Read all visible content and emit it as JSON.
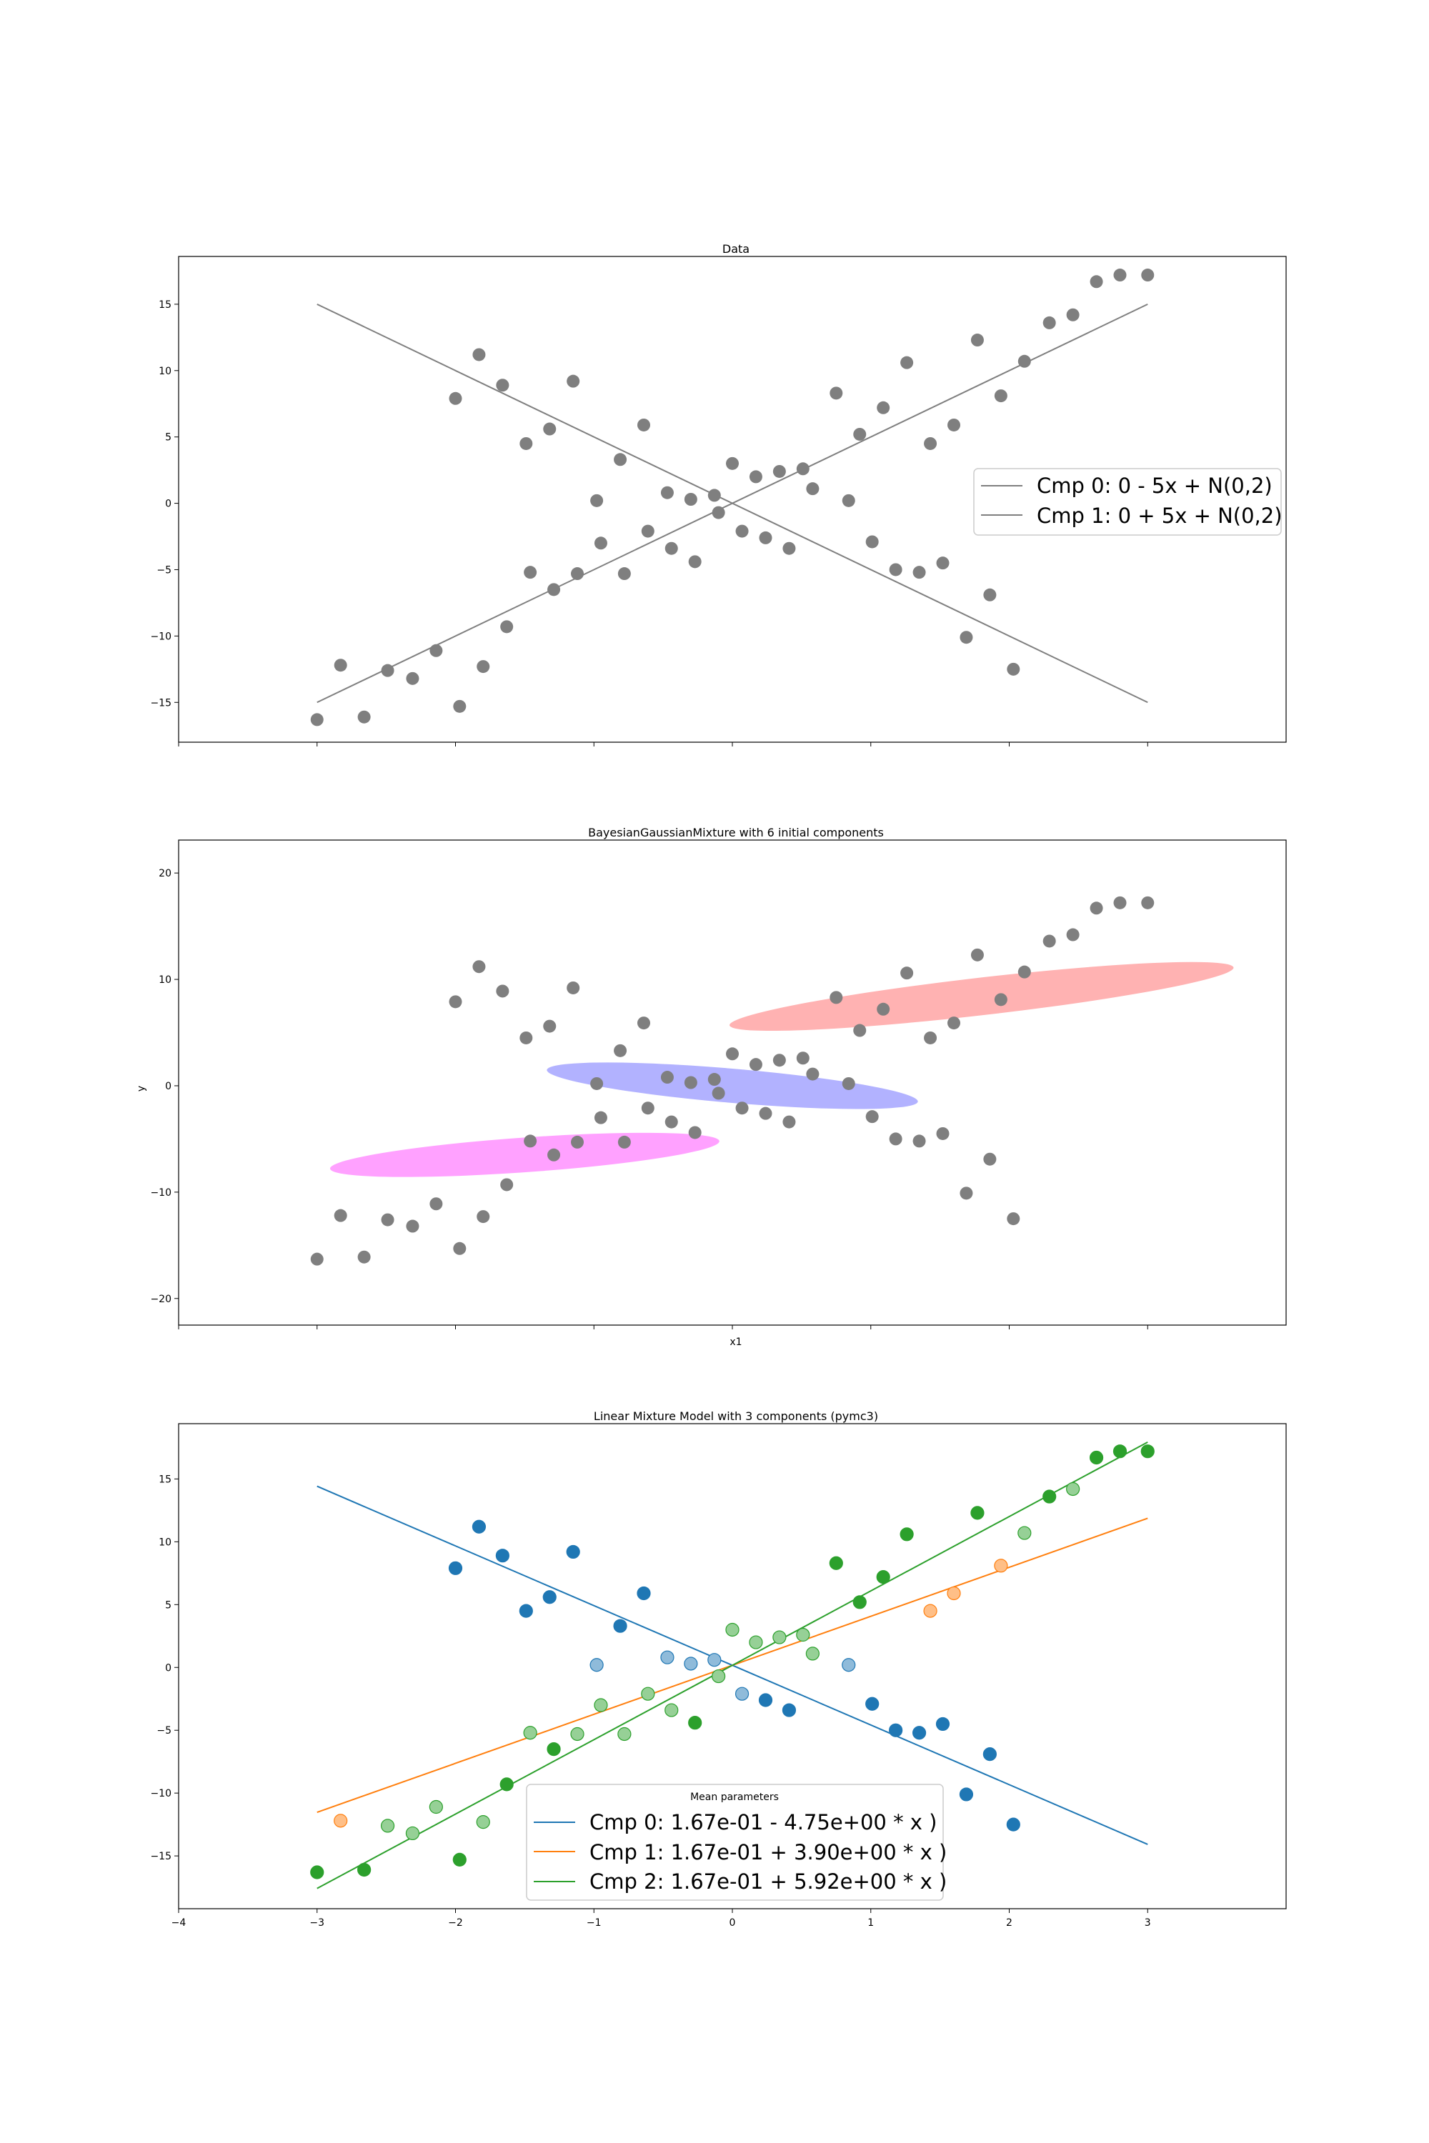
{
  "colors": {
    "gray": "#7f7f7f",
    "blue": "#1f77b4",
    "orange": "#ff7f0e",
    "green": "#2ca02c",
    "ellipse_red": "#ff6666",
    "ellipse_blue": "#6666ff",
    "ellipse_magenta": "#ff44ff"
  },
  "chart_data": [
    {
      "type": "scatter",
      "title": "Data",
      "xlabel": "",
      "ylabel": "",
      "xlim": [
        -4,
        4
      ],
      "ylim": [
        -18,
        18.6
      ],
      "x_ticks": [],
      "y_ticks": [
        -15,
        -10,
        -5,
        0,
        5,
        10,
        15
      ],
      "y_tick_labels": [
        "−15",
        "−10",
        "−5",
        "0",
        "5",
        "10",
        "15"
      ],
      "points": [
        [
          -3.0,
          -16.3
        ],
        [
          -2.83,
          -12.2
        ],
        [
          -2.66,
          -16.1
        ],
        [
          -2.49,
          -12.6
        ],
        [
          -2.31,
          -13.2
        ],
        [
          -2.14,
          -11.1
        ],
        [
          -1.97,
          -15.3
        ],
        [
          -1.8,
          -12.3
        ],
        [
          -1.63,
          -9.3
        ],
        [
          -1.46,
          -5.2
        ],
        [
          -1.29,
          -6.5
        ],
        [
          -1.12,
          -5.3
        ],
        [
          -0.95,
          -3.0
        ],
        [
          -0.78,
          -5.3
        ],
        [
          -0.61,
          -2.1
        ],
        [
          -0.44,
          -3.4
        ],
        [
          -0.27,
          -4.4
        ],
        [
          -0.1,
          -0.7
        ],
        [
          0.07,
          -2.1
        ],
        [
          0.24,
          -2.6
        ],
        [
          0.41,
          -3.4
        ],
        [
          0.58,
          1.1
        ],
        [
          0.75,
          8.3
        ],
        [
          0.92,
          5.2
        ],
        [
          1.09,
          7.2
        ],
        [
          1.26,
          10.6
        ],
        [
          1.43,
          4.5
        ],
        [
          1.6,
          5.9
        ],
        [
          1.77,
          12.3
        ],
        [
          1.94,
          8.1
        ],
        [
          2.11,
          10.7
        ],
        [
          2.29,
          13.6
        ],
        [
          2.46,
          14.2
        ],
        [
          2.63,
          16.7
        ],
        [
          2.8,
          17.2
        ],
        [
          3.0,
          17.2
        ],
        [
          -2.0,
          7.9
        ],
        [
          -1.83,
          11.2
        ],
        [
          -1.66,
          8.9
        ],
        [
          -1.49,
          4.5
        ],
        [
          -1.32,
          5.6
        ],
        [
          -1.15,
          9.2
        ],
        [
          -0.98,
          0.2
        ],
        [
          -0.81,
          3.3
        ],
        [
          -0.64,
          5.9
        ],
        [
          -0.47,
          0.8
        ],
        [
          -0.3,
          0.3
        ],
        [
          -0.13,
          0.6
        ],
        [
          0.0,
          3.0
        ],
        [
          0.17,
          2.0
        ],
        [
          0.34,
          2.4
        ],
        [
          0.51,
          2.6
        ],
        [
          0.84,
          0.2
        ],
        [
          1.01,
          -2.9
        ],
        [
          1.18,
          -5.0
        ],
        [
          1.35,
          -5.2
        ],
        [
          1.52,
          -4.5
        ],
        [
          1.69,
          -10.1
        ],
        [
          1.86,
          -6.9
        ],
        [
          2.03,
          -12.5
        ]
      ],
      "lines": [
        {
          "name": "Cmp 0: 0 - 5x + N(0,2)",
          "x": [
            -3,
            3
          ],
          "y": [
            15,
            -15
          ]
        },
        {
          "name": "Cmp 1: 0 + 5x + N(0,2)",
          "x": [
            -3,
            3
          ],
          "y": [
            -15,
            15
          ]
        }
      ],
      "legend": [
        "Cmp 0: 0 - 5x + N(0,2)",
        "Cmp 1: 0 + 5x + N(0,2)"
      ]
    },
    {
      "type": "scatter",
      "title": "BayesianGaussianMixture with 6 initial components",
      "xlabel": "x1",
      "ylabel": "y",
      "xlim": [
        -4,
        4
      ],
      "ylim": [
        -22.5,
        23.1
      ],
      "x_ticks": [],
      "y_ticks": [
        -20,
        -10,
        0,
        10,
        20
      ],
      "y_tick_labels": [
        "−20",
        "−10",
        "0",
        "10",
        "20"
      ],
      "ellipses": [
        {
          "name": "component-red",
          "cx": 1.8,
          "cy": 8.4,
          "rx": 3.6,
          "ry": 0.9,
          "angle_deg": 63.0,
          "fill": "#ff6666",
          "alpha": 0.5
        },
        {
          "name": "component-blue",
          "cx": 0.0,
          "cy": 0.0,
          "rx": 2.4,
          "ry": 0.9,
          "angle_deg": -63.5,
          "fill": "#6666ff",
          "alpha": 0.5
        },
        {
          "name": "component-magenta",
          "cx": -1.5,
          "cy": -6.5,
          "rx": 2.3,
          "ry": 1.0,
          "angle_deg": 61.5,
          "fill": "#ff44ff",
          "alpha": 0.5
        }
      ]
    },
    {
      "type": "scatter",
      "title": "Linear Mixture Model with 3 components (pymc3)",
      "xlabel": "",
      "ylabel": "",
      "xlim": [
        -4,
        4
      ],
      "ylim": [
        -19.2,
        19.4
      ],
      "x_ticks": [
        -4,
        -3,
        -2,
        -1,
        0,
        1,
        2,
        3
      ],
      "x_tick_labels": [
        "−4",
        "−3",
        "−2",
        "−1",
        "0",
        "1",
        "2",
        "3"
      ],
      "y_ticks": [
        -15,
        -10,
        -5,
        0,
        5,
        10,
        15
      ],
      "y_tick_labels": [
        "−15",
        "−10",
        "−5",
        "0",
        "5",
        "10",
        "15"
      ],
      "assignments": [
        2,
        1,
        2,
        2,
        2,
        2,
        2,
        2,
        2,
        2,
        2,
        2,
        2,
        2,
        2,
        2,
        2,
        2,
        0,
        0,
        0,
        2,
        2,
        2,
        2,
        2,
        1,
        1,
        2,
        1,
        2,
        2,
        2,
        2,
        2,
        2,
        0,
        0,
        0,
        0,
        0,
        0,
        0,
        0,
        0,
        0,
        0,
        0,
        2,
        2,
        2,
        2,
        0,
        0,
        0,
        0,
        0,
        0,
        0,
        0
      ],
      "strong": [
        1,
        0,
        1,
        0,
        0,
        0,
        1,
        0,
        1,
        0,
        1,
        0,
        0,
        0,
        0,
        0,
        1,
        0,
        0,
        1,
        1,
        0,
        1,
        1,
        1,
        1,
        0,
        0,
        1,
        0,
        0,
        1,
        0,
        1,
        1,
        1,
        1,
        1,
        1,
        1,
        1,
        1,
        0,
        1,
        1,
        0,
        0,
        0,
        0,
        0,
        0,
        0,
        0,
        1,
        1,
        1,
        1,
        1,
        1,
        1
      ],
      "lines": [
        {
          "name": "Cmp 0: 1.67e-01 - 4.75e+00 * x )",
          "color": "#1f77b4",
          "x": [
            -3,
            3
          ],
          "y": [
            14.42,
            -14.08
          ]
        },
        {
          "name": "Cmp 1: 1.67e-01 + 3.90e+00 * x )",
          "color": "#ff7f0e",
          "x": [
            -3,
            3
          ],
          "y": [
            -11.53,
            11.87
          ]
        },
        {
          "name": "Cmp 2: 1.67e-01 + 5.92e+00 * x )",
          "color": "#2ca02c",
          "x": [
            -3,
            3
          ],
          "y": [
            -17.59,
            17.93
          ]
        }
      ],
      "legend_title": "Mean parameters",
      "legend": [
        "Cmp 0: 1.67e-01 - 4.75e+00 * x )",
        "Cmp 1: 1.67e-01 + 3.90e+00 * x )",
        "Cmp 2: 1.67e-01 + 5.92e+00 * x )"
      ]
    }
  ]
}
